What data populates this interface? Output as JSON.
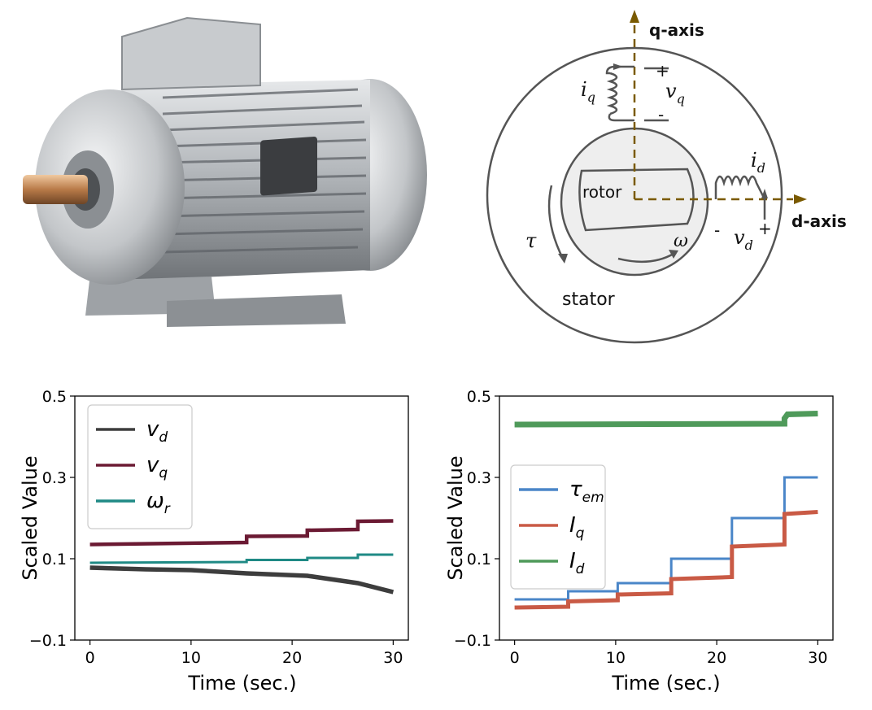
{
  "diagram": {
    "q_axis_label": "q-axis",
    "d_axis_label": "d-axis",
    "rotor_label": "rotor",
    "stator_label": "stator",
    "iq_label": "i",
    "iq_sub": "q",
    "vq_label": "v",
    "vq_sub": "q",
    "id_label": "i",
    "id_sub": "d",
    "vd_label": "v",
    "vd_sub": "d",
    "tau_label": "τ",
    "omega_label": "ω",
    "plus": "+",
    "minus": "-",
    "axis_color": "#7a5a00"
  },
  "chart_data": [
    {
      "type": "line",
      "xlabel": "Time (sec.)",
      "ylabel": "Scaled Value",
      "xlim": [
        -1.5,
        31.5
      ],
      "ylim": [
        -0.1,
        0.5
      ],
      "xticks": [
        "0",
        "10",
        "20",
        "30"
      ],
      "yticks": [
        "−0.1",
        "0.1",
        "0.3",
        "0.5"
      ],
      "ytick_values": [
        -0.1,
        0.1,
        0.3,
        0.5
      ],
      "xtick_values": [
        0,
        10,
        20,
        30
      ],
      "legend_position": "upper-left",
      "series": [
        {
          "name": "v",
          "sub": "d",
          "color": "#3d3d3d",
          "width": 5.5,
          "x": [
            0,
            5.5,
            10,
            15.5,
            21.5,
            26.5,
            30
          ],
          "y": [
            0.078,
            0.074,
            0.072,
            0.064,
            0.058,
            0.04,
            0.018
          ]
        },
        {
          "name": "v",
          "sub": "q",
          "color": "#6b1a33",
          "width": 4.5,
          "x": [
            0,
            15.5,
            15.5,
            21.5,
            21.5,
            26.5,
            26.5,
            30
          ],
          "y": [
            0.135,
            0.14,
            0.155,
            0.156,
            0.17,
            0.172,
            0.192,
            0.193
          ]
        },
        {
          "name": "ω",
          "sub": "r",
          "color": "#1f8a85",
          "width": 3,
          "x": [
            0,
            15.5,
            15.5,
            21.5,
            21.5,
            26.5,
            26.5,
            30
          ],
          "y": [
            0.09,
            0.092,
            0.097,
            0.097,
            0.102,
            0.102,
            0.11,
            0.11
          ]
        }
      ]
    },
    {
      "type": "line",
      "xlabel": "Time (sec.)",
      "ylabel": "Scaled Value",
      "xlim": [
        -1.5,
        31.5
      ],
      "ylim": [
        -0.1,
        0.5
      ],
      "xticks": [
        "0",
        "10",
        "20",
        "30"
      ],
      "yticks": [
        "−0.1",
        "0.1",
        "0.3",
        "0.5"
      ],
      "ytick_values": [
        -0.1,
        0.1,
        0.3,
        0.5
      ],
      "xtick_values": [
        0,
        10,
        20,
        30
      ],
      "legend_position": "center-left",
      "series": [
        {
          "name": "τ",
          "sub": "em",
          "color": "#4a86c8",
          "width": 3,
          "x": [
            0,
            5.3,
            5.3,
            10.2,
            10.2,
            15.5,
            15.5,
            21.5,
            21.5,
            26.7,
            26.7,
            30
          ],
          "y": [
            0.0,
            0.0,
            0.02,
            0.02,
            0.04,
            0.04,
            0.1,
            0.1,
            0.2,
            0.2,
            0.3,
            0.3
          ]
        },
        {
          "name": "I",
          "sub": "q",
          "color": "#c95a45",
          "width": 5,
          "x": [
            0,
            5.3,
            5.3,
            10.2,
            10.2,
            15.5,
            15.5,
            21.5,
            21.5,
            26.7,
            26.7,
            30
          ],
          "y": [
            -0.02,
            -0.018,
            -0.005,
            -0.002,
            0.012,
            0.015,
            0.05,
            0.055,
            0.13,
            0.135,
            0.21,
            0.215
          ]
        },
        {
          "name": "I",
          "sub": "d",
          "color": "#4f9a5a",
          "width": 7,
          "x": [
            0,
            26.7,
            26.7,
            27.0,
            30
          ],
          "y": [
            0.43,
            0.432,
            0.445,
            0.455,
            0.457
          ]
        }
      ]
    }
  ]
}
